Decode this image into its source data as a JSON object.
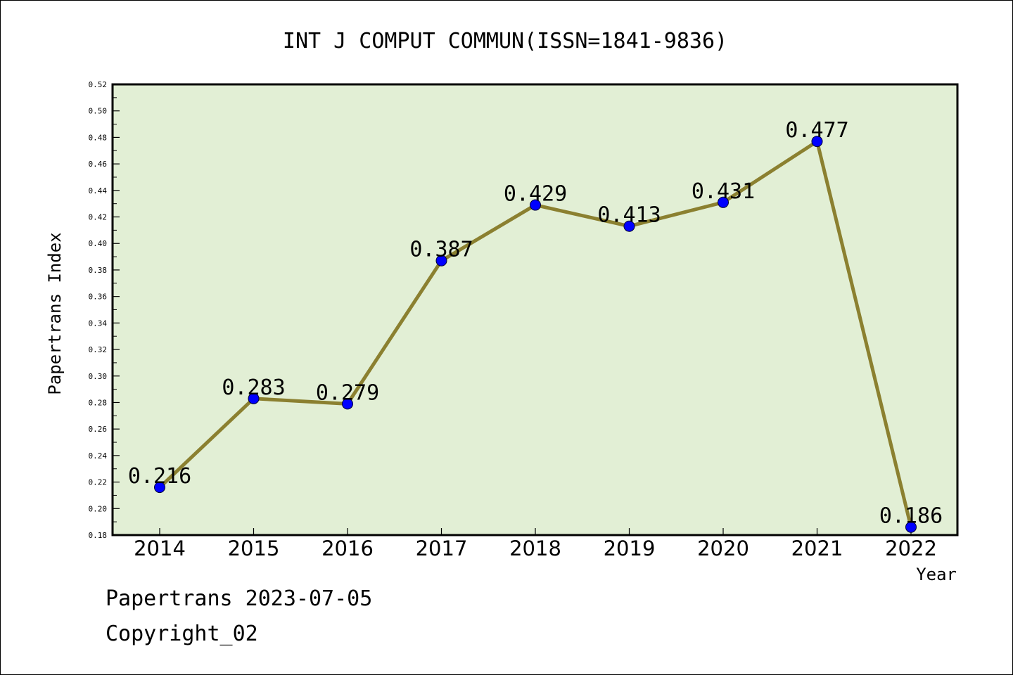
{
  "chart_data": {
    "type": "line",
    "title": "INT J COMPUT COMMUN(ISSN=1841-9836)",
    "xlabel": "Year",
    "ylabel": "Papertrans Index",
    "categories": [
      "2014",
      "2015",
      "2016",
      "2017",
      "2018",
      "2019",
      "2020",
      "2021",
      "2022"
    ],
    "values": [
      0.216,
      0.283,
      0.279,
      0.387,
      0.429,
      0.413,
      0.431,
      0.477,
      0.186
    ],
    "data_labels": [
      "0.216",
      "0.283",
      "0.279",
      "0.387",
      "0.429",
      "0.413",
      "0.431",
      "0.477",
      "0.186"
    ],
    "ylim": [
      0.18,
      0.52
    ],
    "yticks": [
      "0.18",
      "0.20",
      "0.22",
      "0.24",
      "0.26",
      "0.28",
      "0.30",
      "0.32",
      "0.34",
      "0.36",
      "0.38",
      "0.40",
      "0.42",
      "0.44",
      "0.46",
      "0.48",
      "0.50",
      "0.52"
    ],
    "grid": false,
    "colors": {
      "plot_background": "#e2efd5",
      "line": "#8b8030",
      "marker": "#0000ff"
    }
  },
  "footer": {
    "line1": "Papertrans 2023-07-05",
    "line2": "Copyright_02"
  }
}
